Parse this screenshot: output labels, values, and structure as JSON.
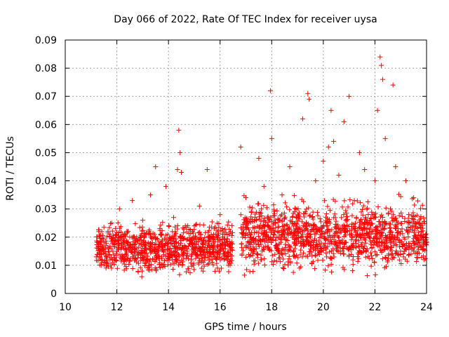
{
  "chart_data": {
    "type": "scatter",
    "title": "Day 066 of 2022, Rate Of TEC Index for receiver uysa",
    "xlabel": "GPS time / hours",
    "ylabel": "ROTI / TECUs",
    "xlim": [
      10,
      24
    ],
    "ylim": [
      0,
      0.09
    ],
    "xticks": [
      "10",
      "12",
      "14",
      "16",
      "18",
      "20",
      "22",
      "24"
    ],
    "yticks": [
      "0",
      "0.01",
      "0.02",
      "0.03",
      "0.04",
      "0.05",
      "0.06",
      "0.07",
      "0.08",
      "0.09"
    ],
    "grid": true,
    "marker": "plus",
    "colors": {
      "series": "#ff0000",
      "grid": "#a0a0a0",
      "axis": "#000000"
    },
    "series": [
      {
        "marker": "+",
        "x": [
          11.2,
          11.3,
          11.5,
          11.6,
          11.8,
          12.0,
          12.1,
          12.3,
          12.5,
          12.6,
          12.8,
          13.0,
          13.1,
          13.3,
          13.4,
          13.5,
          13.7,
          13.9,
          14.0,
          14.2,
          14.35,
          14.4,
          14.45,
          14.5,
          14.7,
          14.9,
          15.0,
          15.2,
          15.4,
          15.5,
          15.7,
          15.9,
          16.0,
          16.2,
          16.4,
          16.8,
          16.85,
          17.0,
          17.2,
          17.4,
          17.5,
          17.6,
          17.7,
          17.8,
          17.95,
          18.0,
          18.2,
          18.4,
          18.5,
          18.7,
          18.9,
          19.0,
          19.2,
          19.4,
          19.45,
          19.5,
          19.7,
          19.9,
          20.0,
          20.2,
          20.3,
          20.4,
          20.5,
          20.6,
          20.8,
          21.0,
          21.2,
          21.4,
          21.5,
          21.6,
          21.8,
          22.0,
          22.1,
          22.2,
          22.25,
          22.3,
          22.4,
          22.6,
          22.7,
          22.8,
          23.0,
          23.2,
          23.4,
          23.5,
          23.7,
          23.9,
          24.0
        ],
        "y": [
          0.013,
          0.022,
          0.018,
          0.011,
          0.025,
          0.015,
          0.03,
          0.012,
          0.02,
          0.033,
          0.014,
          0.026,
          0.017,
          0.035,
          0.012,
          0.045,
          0.021,
          0.038,
          0.016,
          0.027,
          0.044,
          0.058,
          0.05,
          0.043,
          0.019,
          0.012,
          0.024,
          0.031,
          0.015,
          0.044,
          0.02,
          0.013,
          0.028,
          0.017,
          0.022,
          0.052,
          0.014,
          0.034,
          0.019,
          0.026,
          0.048,
          0.012,
          0.038,
          0.021,
          0.072,
          0.055,
          0.016,
          0.035,
          0.024,
          0.045,
          0.013,
          0.028,
          0.062,
          0.071,
          0.069,
          0.02,
          0.04,
          0.015,
          0.047,
          0.052,
          0.065,
          0.054,
          0.023,
          0.042,
          0.061,
          0.07,
          0.033,
          0.05,
          0.018,
          0.044,
          0.026,
          0.04,
          0.065,
          0.084,
          0.081,
          0.076,
          0.055,
          0.03,
          0.074,
          0.045,
          0.022,
          0.04,
          0.014,
          0.034,
          0.025,
          0.012,
          0.018
        ]
      }
    ],
    "dense_bands": [
      {
        "x_start": 11.2,
        "x_end": 16.5,
        "y_low": 0.005,
        "y_high": 0.025
      },
      {
        "x_start": 16.8,
        "x_end": 24.0,
        "y_low": 0.005,
        "y_high": 0.032
      }
    ]
  }
}
